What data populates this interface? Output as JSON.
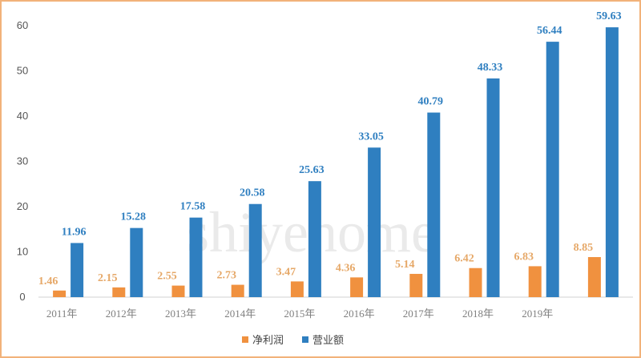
{
  "chart_data": {
    "type": "bar",
    "title": "",
    "xlabel": "",
    "ylabel": "",
    "ylim": [
      0,
      60
    ],
    "yticks": [
      0,
      10,
      20,
      30,
      40,
      50,
      60
    ],
    "grid": false,
    "legend_position": "bottom",
    "categories": [
      "2011年",
      "2012年",
      "2013年",
      "2014年",
      "2015年",
      "2016年",
      "2017年",
      "2018年",
      "2019年",
      ""
    ],
    "series": [
      {
        "name": "净利润",
        "color": "#f0913f",
        "values": [
          1.46,
          2.15,
          2.55,
          2.73,
          3.47,
          4.36,
          5.14,
          6.42,
          6.83,
          8.85
        ]
      },
      {
        "name": "营业额",
        "color": "#2f7fc0",
        "values": [
          11.96,
          15.28,
          17.58,
          20.58,
          25.63,
          33.05,
          40.79,
          48.33,
          56.44,
          59.63
        ]
      }
    ],
    "label_colors": {
      "净利润": "#e6a868",
      "营业额": "#2f7fc0"
    },
    "watermark": "shiyehome"
  }
}
